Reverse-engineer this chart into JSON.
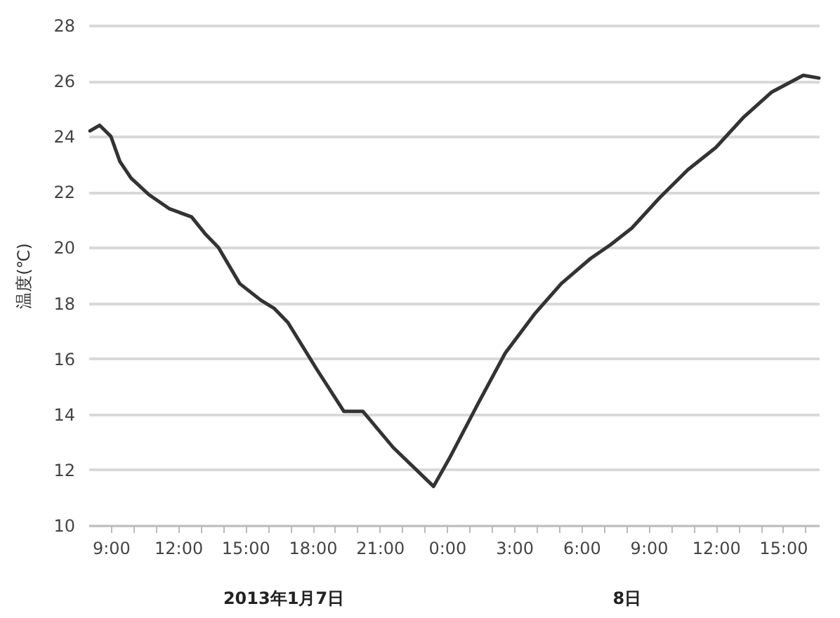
{
  "chart_data": {
    "type": "line",
    "ylabel": "温度(℃)",
    "annotations": [
      "2013年1月7日",
      "8日"
    ],
    "x": [
      "2013-01-07T08:04",
      "2013-01-07T08:30",
      "2013-01-07T09:00",
      "2013-01-07T09:24",
      "2013-01-07T09:54",
      "2013-01-07T10:42",
      "2013-01-07T11:36",
      "2013-01-07T12:36",
      "2013-01-07T13:12",
      "2013-01-07T13:48",
      "2013-01-07T14:45",
      "2013-01-07T15:42",
      "2013-01-07T16:18",
      "2013-01-07T16:54",
      "2013-01-07T18:12",
      "2013-01-07T19:24",
      "2013-01-07T20:15",
      "2013-01-07T21:36",
      "2013-01-07T23:24",
      "2013-01-08T00:06",
      "2013-01-08T01:24",
      "2013-01-08T02:36",
      "2013-01-08T03:54",
      "2013-01-08T05:06",
      "2013-01-08T06:24",
      "2013-01-08T07:18",
      "2013-01-08T08:15",
      "2013-01-08T09:30",
      "2013-01-08T10:45",
      "2013-01-08T12:00",
      "2013-01-08T13:15",
      "2013-01-08T14:30",
      "2013-01-08T15:54",
      "2013-01-08T16:36"
    ],
    "series": [
      {
        "color": "#333333",
        "values": [
          24.2,
          24.4,
          24.0,
          23.1,
          22.5,
          21.9,
          21.4,
          21.1,
          20.5,
          20.0,
          18.7,
          18.1,
          17.8,
          17.3,
          15.6,
          14.1,
          14.1,
          12.8,
          11.4,
          12.4,
          14.4,
          16.2,
          17.6,
          18.7,
          19.6,
          20.1,
          20.7,
          21.8,
          22.8,
          23.6,
          24.7,
          25.6,
          26.2,
          26.1
        ]
      }
    ],
    "xlim": [
      "2013-01-07T08:00",
      "2013-01-08T16:36"
    ],
    "xticks": [
      {
        "value": "2013-01-07T09:00",
        "label": "9:00"
      },
      {
        "value": "2013-01-07T10:00",
        "label": null
      },
      {
        "value": "2013-01-07T11:00",
        "label": null
      },
      {
        "value": "2013-01-07T12:00",
        "label": "12:00"
      },
      {
        "value": "2013-01-07T13:00",
        "label": null
      },
      {
        "value": "2013-01-07T14:00",
        "label": null
      },
      {
        "value": "2013-01-07T15:00",
        "label": "15:00"
      },
      {
        "value": "2013-01-07T16:00",
        "label": null
      },
      {
        "value": "2013-01-07T17:00",
        "label": null
      },
      {
        "value": "2013-01-07T18:00",
        "label": "18:00"
      },
      {
        "value": "2013-01-07T19:00",
        "label": null
      },
      {
        "value": "2013-01-07T20:00",
        "label": null
      },
      {
        "value": "2013-01-07T21:00",
        "label": "21:00"
      },
      {
        "value": "2013-01-07T22:00",
        "label": null
      },
      {
        "value": "2013-01-07T23:00",
        "label": null
      },
      {
        "value": "2013-01-08T00:00",
        "label": "0:00"
      },
      {
        "value": "2013-01-08T01:00",
        "label": null
      },
      {
        "value": "2013-01-08T02:00",
        "label": null
      },
      {
        "value": "2013-01-08T03:00",
        "label": "3:00"
      },
      {
        "value": "2013-01-08T04:00",
        "label": null
      },
      {
        "value": "2013-01-08T05:00",
        "label": null
      },
      {
        "value": "2013-01-08T06:00",
        "label": "6:00"
      },
      {
        "value": "2013-01-08T07:00",
        "label": null
      },
      {
        "value": "2013-01-08T08:00",
        "label": null
      },
      {
        "value": "2013-01-08T09:00",
        "label": "9:00"
      },
      {
        "value": "2013-01-08T10:00",
        "label": null
      },
      {
        "value": "2013-01-08T11:00",
        "label": null
      },
      {
        "value": "2013-01-08T12:00",
        "label": "12:00"
      },
      {
        "value": "2013-01-08T13:00",
        "label": null
      },
      {
        "value": "2013-01-08T14:00",
        "label": null
      },
      {
        "value": "2013-01-08T15:00",
        "label": "15:00"
      },
      {
        "value": "2013-01-08T16:00",
        "label": null
      }
    ],
    "ylim": [
      10,
      28
    ],
    "yticks": [
      10,
      12,
      14,
      16,
      18,
      20,
      22,
      24,
      26,
      28
    ],
    "grid": "y",
    "marker": "none",
    "line_style": "solid"
  }
}
